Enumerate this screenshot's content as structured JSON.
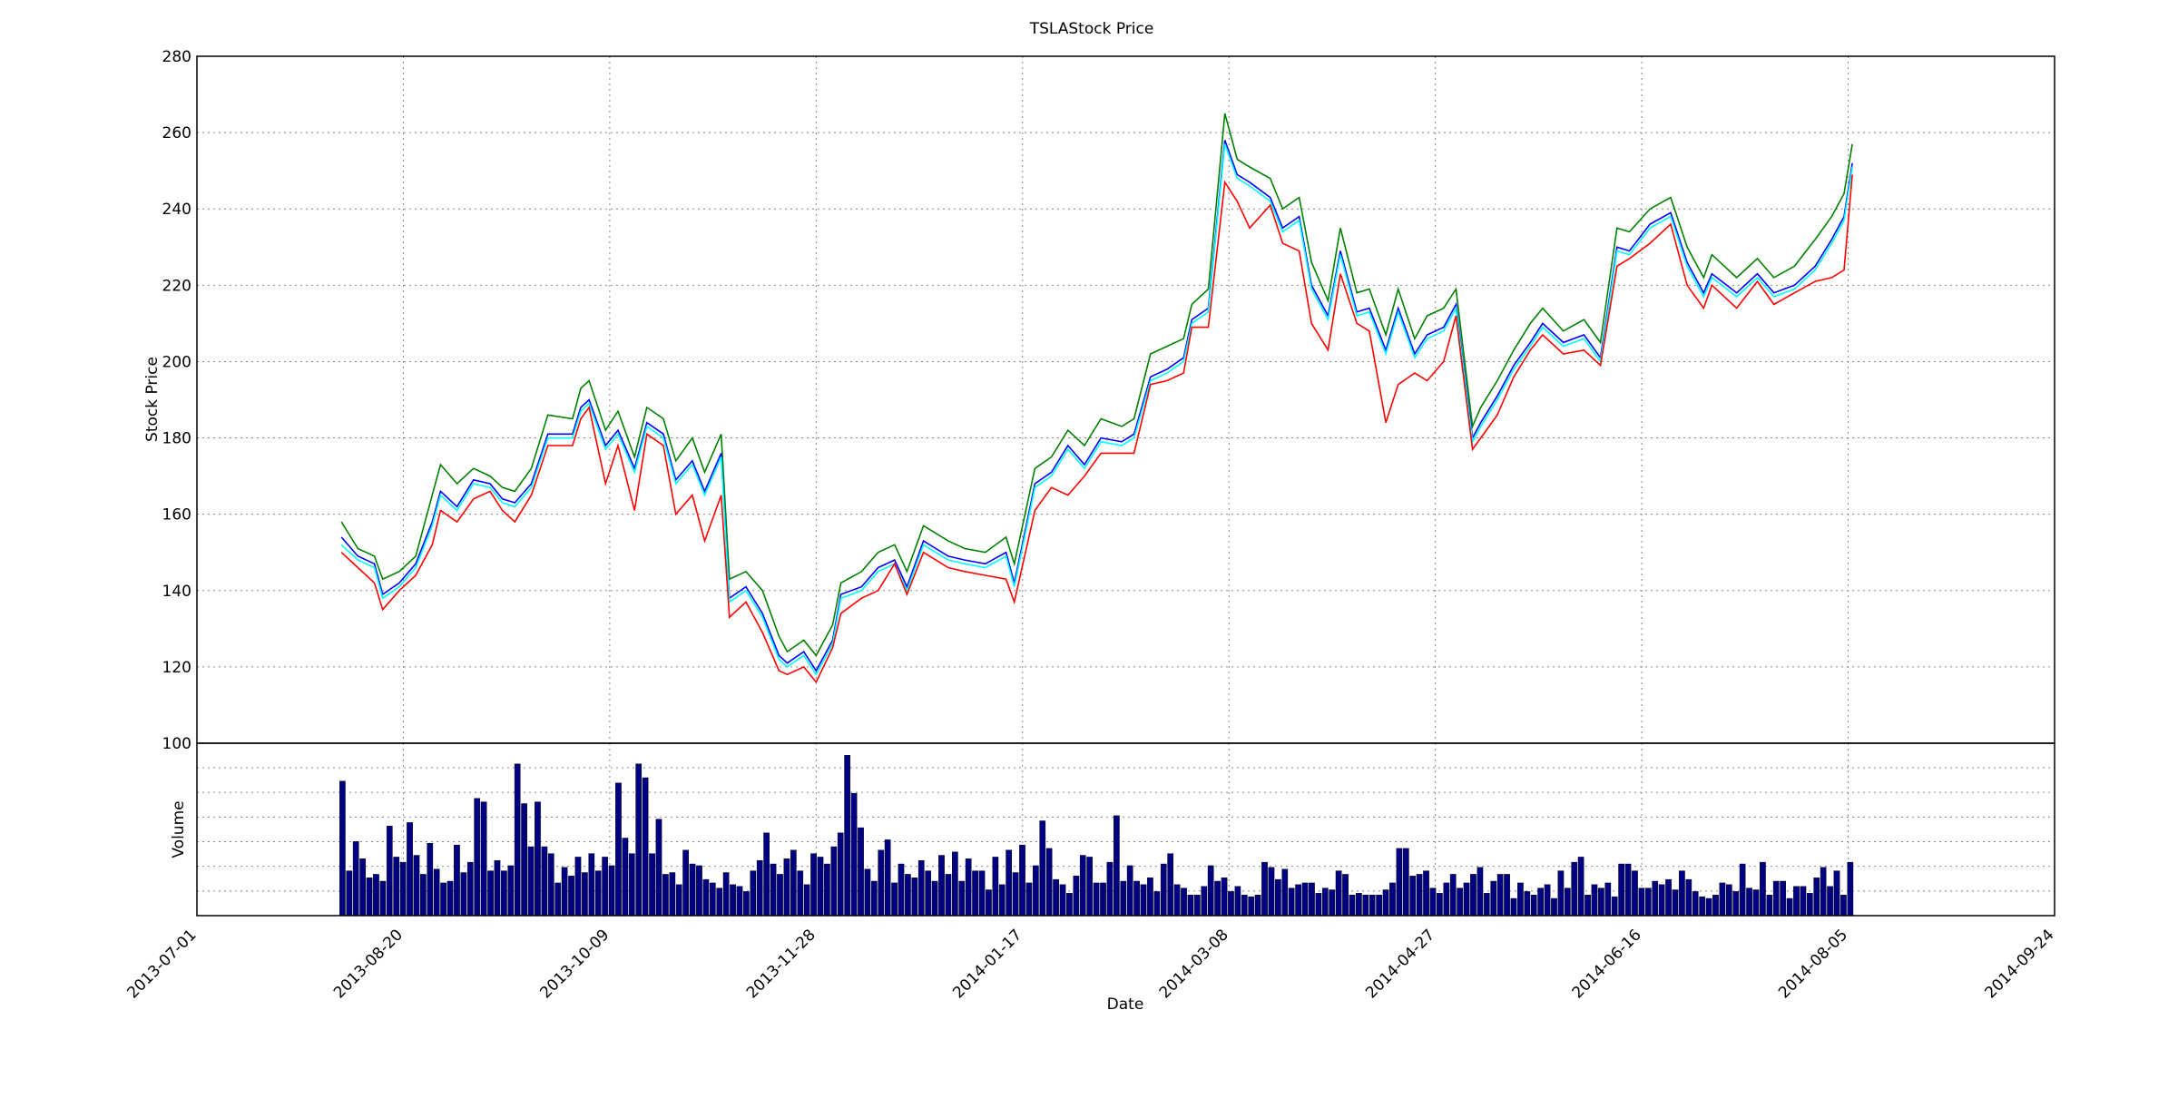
{
  "chart_data": [
    {
      "type": "line",
      "title": "TSLAStock Price",
      "ylabel": "Stock Price",
      "ylim": [
        100,
        280
      ],
      "yticks": [
        "100",
        "120",
        "140",
        "160",
        "180",
        "200",
        "220",
        "240",
        "260",
        "280"
      ],
      "grid": true,
      "x": [
        "2013-08-05",
        "2013-08-09",
        "2013-08-13",
        "2013-08-15",
        "2013-08-19",
        "2013-08-23",
        "2013-08-27",
        "2013-08-29",
        "2013-09-02",
        "2013-09-06",
        "2013-09-10",
        "2013-09-13",
        "2013-09-16",
        "2013-09-20",
        "2013-09-24",
        "2013-09-30",
        "2013-10-02",
        "2013-10-04",
        "2013-10-08",
        "2013-10-11",
        "2013-10-15",
        "2013-10-18",
        "2013-10-22",
        "2013-10-25",
        "2013-10-29",
        "2013-11-01",
        "2013-11-05",
        "2013-11-07",
        "2013-11-11",
        "2013-11-15",
        "2013-11-19",
        "2013-11-21",
        "2013-11-25",
        "2013-11-28",
        "2013-12-02",
        "2013-12-04",
        "2013-12-09",
        "2013-12-13",
        "2013-12-17",
        "2013-12-20",
        "2013-12-24",
        "2013-12-30",
        "2014-01-03",
        "2014-01-08",
        "2014-01-13",
        "2014-01-15",
        "2014-01-20",
        "2014-01-24",
        "2014-01-28",
        "2014-02-01",
        "2014-02-05",
        "2014-02-10",
        "2014-02-13",
        "2014-02-17",
        "2014-02-21",
        "2014-02-25",
        "2014-02-27",
        "2014-03-03",
        "2014-03-07",
        "2014-03-10",
        "2014-03-13",
        "2014-03-18",
        "2014-03-21",
        "2014-03-25",
        "2014-03-28",
        "2014-04-01",
        "2014-04-04",
        "2014-04-08",
        "2014-04-11",
        "2014-04-15",
        "2014-04-18",
        "2014-04-22",
        "2014-04-25",
        "2014-04-29",
        "2014-05-02",
        "2014-05-06",
        "2014-05-08",
        "2014-05-12",
        "2014-05-16",
        "2014-05-20",
        "2014-05-23",
        "2014-05-28",
        "2014-06-02",
        "2014-06-06",
        "2014-06-10",
        "2014-06-13",
        "2014-06-18",
        "2014-06-23",
        "2014-06-27",
        "2014-07-01",
        "2014-07-03",
        "2014-07-09",
        "2014-07-14",
        "2014-07-18",
        "2014-07-23",
        "2014-07-28",
        "2014-08-01",
        "2014-08-04",
        "2014-08-06"
      ],
      "series": [
        {
          "color": "#008000",
          "values": [
            158,
            151,
            149,
            143,
            145,
            149,
            165,
            173,
            168,
            172,
            170,
            167,
            166,
            172,
            186,
            185,
            193,
            195,
            182,
            187,
            175,
            188,
            185,
            174,
            180,
            171,
            181,
            143,
            145,
            140,
            128,
            124,
            127,
            123,
            131,
            142,
            145,
            150,
            152,
            145,
            157,
            153,
            151,
            150,
            154,
            147,
            172,
            175,
            182,
            178,
            185,
            183,
            185,
            202,
            204,
            206,
            215,
            219,
            265,
            253,
            251,
            248,
            240,
            243,
            226,
            216,
            235,
            218,
            219,
            207,
            219,
            206,
            212,
            214,
            219,
            183,
            188,
            195,
            203,
            210,
            214,
            208,
            211,
            205,
            235,
            234,
            240,
            243,
            230,
            222,
            228,
            222,
            227,
            222,
            225,
            232,
            238,
            244,
            257
          ]
        },
        {
          "color": "#0000ff",
          "values": [
            154,
            149,
            147,
            139,
            142,
            147,
            158,
            166,
            162,
            169,
            168,
            164,
            163,
            168,
            181,
            181,
            188,
            190,
            178,
            182,
            172,
            184,
            181,
            169,
            174,
            166,
            176,
            138,
            141,
            134,
            123,
            121,
            124,
            119,
            127,
            139,
            141,
            146,
            148,
            141,
            153,
            149,
            148,
            147,
            150,
            142,
            168,
            171,
            178,
            173,
            180,
            179,
            181,
            196,
            198,
            201,
            211,
            214,
            258,
            249,
            247,
            243,
            235,
            238,
            220,
            212,
            229,
            213,
            214,
            203,
            214,
            202,
            207,
            209,
            215,
            180,
            184,
            191,
            199,
            205,
            210,
            205,
            207,
            201,
            230,
            229,
            236,
            239,
            226,
            218,
            223,
            218,
            223,
            218,
            220,
            225,
            232,
            238,
            252
          ]
        },
        {
          "color": "#00ffff",
          "values": [
            152,
            148,
            146,
            138,
            141,
            146,
            157,
            165,
            161,
            168,
            167,
            163,
            162,
            167,
            180,
            180,
            187,
            189,
            177,
            181,
            171,
            183,
            180,
            168,
            173,
            165,
            175,
            137,
            140,
            133,
            122,
            120,
            123,
            118,
            126,
            138,
            140,
            145,
            147,
            140,
            152,
            148,
            147,
            146,
            149,
            141,
            167,
            170,
            177,
            172,
            179,
            178,
            180,
            195,
            197,
            200,
            210,
            213,
            257,
            248,
            246,
            242,
            234,
            237,
            219,
            211,
            228,
            212,
            213,
            202,
            213,
            201,
            206,
            208,
            214,
            179,
            183,
            190,
            198,
            204,
            209,
            204,
            206,
            200,
            229,
            228,
            235,
            238,
            225,
            217,
            222,
            217,
            222,
            217,
            219,
            224,
            231,
            237,
            251
          ]
        },
        {
          "color": "#ff0000",
          "values": [
            150,
            146,
            142,
            135,
            140,
            144,
            152,
            161,
            158,
            164,
            166,
            161,
            158,
            165,
            178,
            178,
            185,
            188,
            168,
            178,
            161,
            181,
            178,
            160,
            165,
            153,
            165,
            133,
            137,
            129,
            119,
            118,
            120,
            116,
            125,
            134,
            138,
            140,
            147,
            139,
            150,
            146,
            145,
            144,
            143,
            137,
            161,
            167,
            165,
            170,
            176,
            176,
            176,
            194,
            195,
            197,
            209,
            209,
            247,
            242,
            235,
            241,
            231,
            229,
            210,
            203,
            223,
            210,
            208,
            184,
            194,
            197,
            195,
            200,
            212,
            177,
            180,
            186,
            196,
            203,
            207,
            202,
            203,
            199,
            225,
            227,
            231,
            236,
            220,
            214,
            220,
            214,
            221,
            215,
            218,
            221,
            222,
            224,
            249
          ]
        }
      ]
    },
    {
      "type": "bar",
      "ylabel": "Volume",
      "xlabel": "Date",
      "xticks": [
        "2013-07-01",
        "2013-08-20",
        "2013-10-09",
        "2013-11-28",
        "2014-01-17",
        "2014-03-08",
        "2014-04-27",
        "2014-06-16",
        "2014-08-05",
        "2014-09-24"
      ],
      "xlim": [
        "2013-07-01",
        "2014-09-24"
      ],
      "color": "#000080",
      "values": [
        78,
        26,
        43,
        33,
        22,
        24,
        20,
        52,
        34,
        31,
        54,
        35,
        24,
        42,
        27,
        19,
        20,
        41,
        25,
        31,
        68,
        66,
        26,
        32,
        26,
        29,
        88,
        65,
        40,
        66,
        40,
        36,
        19,
        28,
        23,
        34,
        25,
        36,
        26,
        34,
        29,
        77,
        45,
        36,
        88,
        80,
        36,
        56,
        24,
        25,
        18,
        38,
        30,
        29,
        21,
        19,
        16,
        25,
        18,
        17,
        14,
        26,
        32,
        48,
        30,
        24,
        33,
        38,
        26,
        18,
        36,
        34,
        30,
        40,
        48,
        93,
        71,
        51,
        27,
        20,
        38,
        44,
        19,
        30,
        24,
        22,
        32,
        26,
        20,
        35,
        24,
        37,
        20,
        33,
        26,
        26,
        15,
        34,
        18,
        38,
        25,
        41,
        19,
        29,
        55,
        39,
        21,
        18,
        13,
        23,
        35,
        34,
        19,
        19,
        31,
        58,
        20,
        29,
        20,
        18,
        22,
        14,
        30,
        36,
        18,
        16,
        12,
        12,
        17,
        29,
        20,
        22,
        14,
        17,
        12,
        11,
        12,
        31,
        28,
        21,
        27,
        16,
        18,
        19,
        19,
        13,
        16,
        15,
        26,
        24,
        12,
        13,
        12,
        12,
        12,
        15,
        19,
        39,
        39,
        23,
        24,
        26,
        16,
        13,
        19,
        24,
        16,
        19,
        24,
        28,
        13,
        20,
        24,
        24,
        10,
        19,
        14,
        12,
        16,
        18,
        10,
        26,
        16,
        31,
        34,
        12,
        18,
        16,
        19,
        11,
        30,
        30,
        26,
        16,
        16,
        20,
        18,
        21,
        15,
        26,
        21,
        14,
        11,
        10,
        12,
        19,
        18,
        14,
        30,
        16,
        15,
        31,
        12,
        20,
        20,
        10,
        17,
        17,
        13,
        22,
        28,
        17,
        26,
        12,
        31
      ]
    }
  ]
}
